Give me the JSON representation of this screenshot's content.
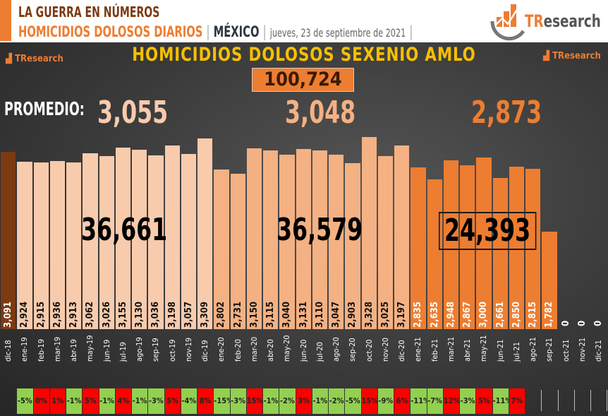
{
  "header": {
    "line1": "LA GUERRA EN NÚMEROS",
    "subject": "HOMICIDIOS DOLOSOS DIARIOS",
    "sep": "|",
    "place": "MÉXICO",
    "date": "jueves, 23 de septiembre de 2021",
    "brand": "TResearch"
  },
  "chart_data": {
    "type": "bar",
    "title": "HOMICIDIOS DOLOSOS SEXENIO AMLO",
    "total": "100,724",
    "promedio_label": "PROMEDIO:",
    "averages": [
      "3,055",
      "3,048",
      "2,873"
    ],
    "year_totals": [
      "36,661",
      "36,579",
      "24,393"
    ],
    "categories": [
      "dic-18",
      "ene-19",
      "feb-19",
      "mar-19",
      "abr-19",
      "may-19",
      "jun-19",
      "jul-19",
      "ago-19",
      "sep-19",
      "oct-19",
      "nov-19",
      "dic-19",
      "ene-20",
      "feb-20",
      "mar-20",
      "abr-20",
      "may-20",
      "jun-20",
      "jul-20",
      "ago-20",
      "sep-20",
      "oct-20",
      "nov-20",
      "dic-20",
      "ene-21",
      "feb-21",
      "mar-21",
      "abr-21",
      "may-21",
      "jun-21",
      "jul-21",
      "ago-21",
      "sep-21",
      "oct-21",
      "nov-21",
      "dic-21"
    ],
    "values": [
      3091,
      2924,
      2915,
      2936,
      2913,
      3062,
      3026,
      3155,
      3130,
      3036,
      3198,
      3057,
      3309,
      2802,
      2731,
      3150,
      3115,
      3040,
      3131,
      3110,
      3047,
      2903,
      3328,
      3025,
      3197,
      2835,
      2635,
      2948,
      2867,
      3000,
      2661,
      2850,
      2815,
      1782,
      0,
      0,
      0
    ],
    "value_labels": [
      "3,091",
      "2,924",
      "2,915",
      "2,936",
      "2,913",
      "3,062",
      "3,026",
      "3,155",
      "3,130",
      "3,036",
      "3,198",
      "3,057",
      "3,309",
      "2,802",
      "2,731",
      "3,150",
      "3,115",
      "3,040",
      "3,131",
      "3,110",
      "3,047",
      "2,903",
      "3,328",
      "3,025",
      "3,197",
      "2,835",
      "2,635",
      "2,948",
      "2,867",
      "3,000",
      "2,661",
      "2,850",
      "2,815",
      "1,782",
      "0",
      "0",
      "0"
    ],
    "monthly_change": [
      "-5%",
      "0%",
      "1%",
      "-1%",
      "5%",
      "-1%",
      "4%",
      "-1%",
      "-3%",
      "5%",
      "-4%",
      "8%",
      "-15%",
      "-3%",
      "15%",
      "-1%",
      "-2%",
      "3%",
      "-1%",
      "-2%",
      "-5%",
      "15%",
      "-9%",
      "6%",
      "-11%",
      "-7%",
      "12%",
      "-3%",
      "5%",
      "-11%",
      "7%"
    ],
    "colors": {
      "2018": "#7b3a12",
      "2019": "#f8cbad",
      "2020": "#f4b183",
      "2021": "#ed7d31",
      "increase": "#ff0000",
      "decrease": "#92d050"
    }
  }
}
